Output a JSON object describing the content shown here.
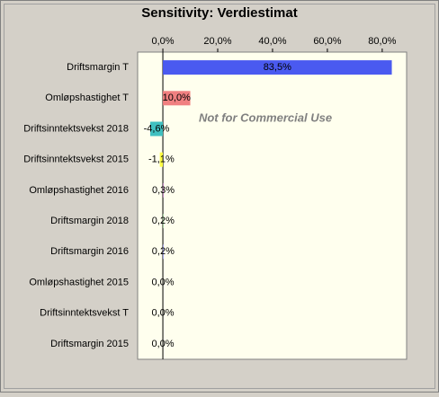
{
  "chart_data": {
    "type": "bar",
    "orientation": "horizontal",
    "title": "Sensitivity: Verdiestimat",
    "annotation": "Not for Commercial Use",
    "categories": [
      "Driftsmargin T",
      "Omløpshastighet T",
      "Driftsinntektsvekst 2018",
      "Driftsinntektsvekst 2015",
      "Omløpshastighet 2016",
      "Driftsmargin 2018",
      "Driftsmargin 2016",
      "Omløpshastighet 2015",
      "Driftsinntektsvekst T",
      "Driftsmargin 2015"
    ],
    "values": [
      83.5,
      10.0,
      -4.6,
      -1.1,
      0.3,
      0.2,
      0.2,
      0.0,
      0.0,
      0.0
    ],
    "value_labels": [
      "83,5%",
      "10,0%",
      "-4,6%",
      "-1,1%",
      "0,3%",
      "0,2%",
      "0,2%",
      "0,0%",
      "0,0%",
      "0,0%"
    ],
    "colors": [
      "#4a5af0",
      "#f08080",
      "#40c0c0",
      "#ffff40",
      "#c080c0",
      "#80c080",
      "#8080ff",
      "#f0a060",
      "#a0a0a0",
      "#60a0f0"
    ],
    "xlim": [
      -9.2,
      88.9
    ],
    "xticks": [
      {
        "value": 0,
        "label": "0,0%"
      },
      {
        "value": 20,
        "label": "20,0%"
      },
      {
        "value": 40,
        "label": "40,0%"
      },
      {
        "value": 60,
        "label": "60,0%"
      },
      {
        "value": 80,
        "label": "80,0%"
      }
    ],
    "grid": false
  }
}
